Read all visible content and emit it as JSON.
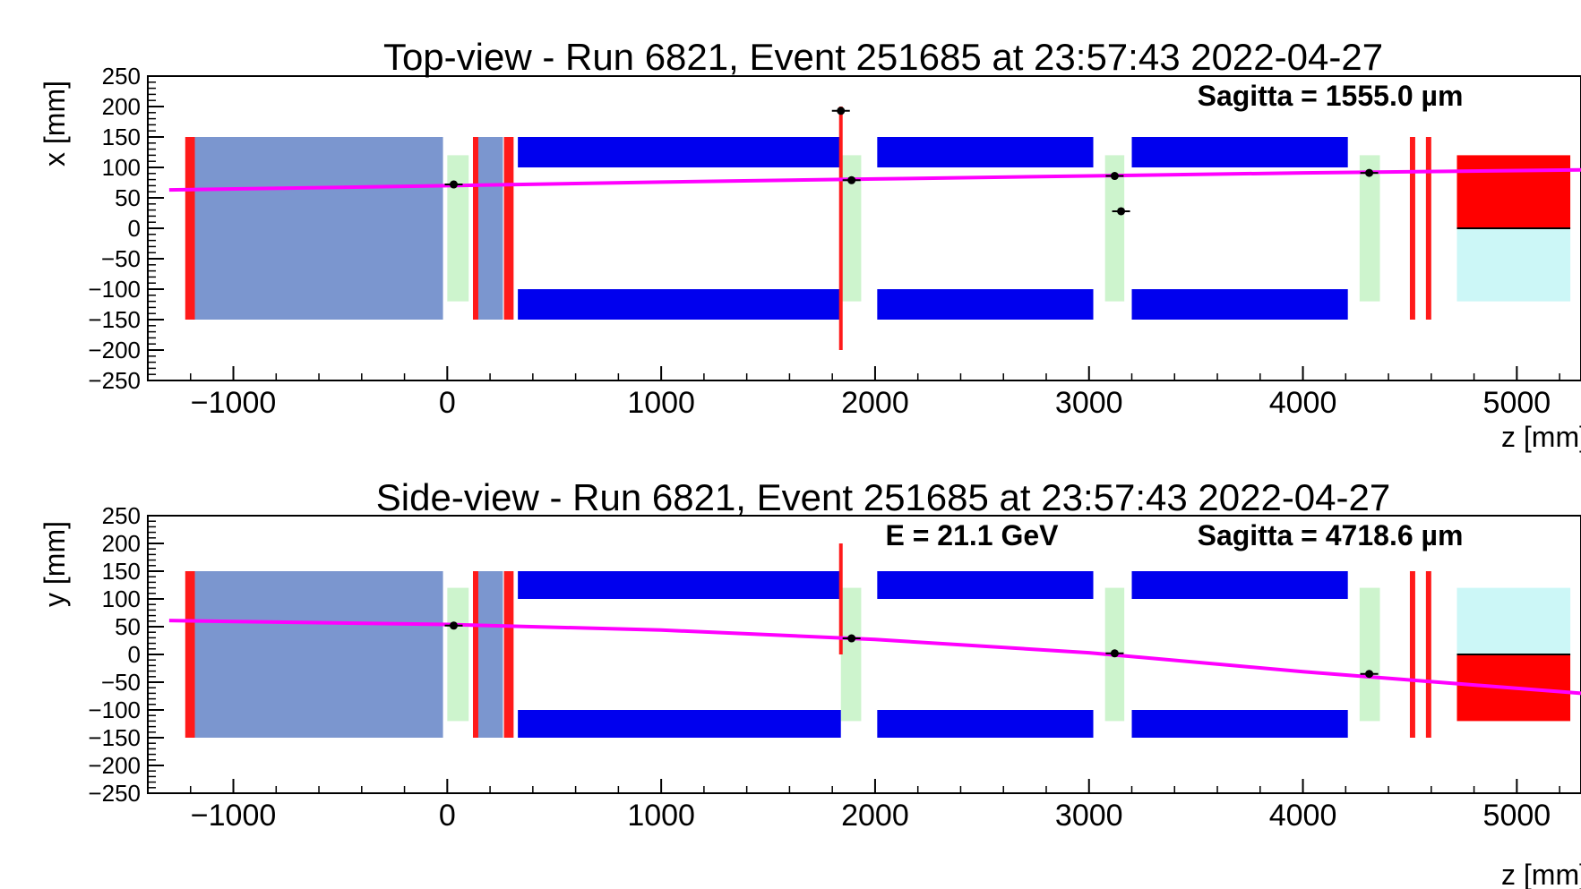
{
  "colors": {
    "track": "#ff00ff",
    "absorber": "#7b96cf",
    "magnet": "#0000ee",
    "scintillator": "#ff1a1a",
    "tracker": "#cdf4cd",
    "calorimeter_hit": "#ff0000",
    "calorimeter": "#ccf7f7",
    "frame": "#000000"
  },
  "chart_data": [
    {
      "type": "scatter",
      "title": "Top-view - Run 6821, Event 251685 at 23:57:43 2022-04-27",
      "xlabel": "z [mm]",
      "ylabel": "x [mm]",
      "xlim": [
        -1400,
        5300
      ],
      "ylim": [
        -250,
        250
      ],
      "x_ticks": [
        -1000,
        0,
        1000,
        2000,
        3000,
        4000,
        5000
      ],
      "y_ticks": [
        250,
        200,
        150,
        100,
        50,
        0,
        -50,
        -100,
        -150,
        -200,
        -250
      ],
      "annotations": [
        "Sagitta = 1555.0 µm"
      ],
      "track": {
        "z": [
          -1300,
          0,
          1000,
          2000,
          3000,
          4000,
          5300
        ],
        "value": [
          63,
          70,
          76,
          81,
          86,
          91,
          96
        ]
      },
      "hits": [
        {
          "z": 30,
          "value": 72
        },
        {
          "z": 1890,
          "value": 79
        },
        {
          "z": 3120,
          "value": 86
        },
        {
          "z": 4310,
          "value": 91
        },
        {
          "z": 1840,
          "value": 193
        },
        {
          "z": 3150,
          "value": 28
        }
      ],
      "scintillator_lines": [
        {
          "z": 1840,
          "from": -200,
          "to": 200
        }
      ],
      "calorimeter_hit_box": {
        "z0": 4720,
        "z1": 5250,
        "from": 0,
        "to": 120
      },
      "calorimeter_box": {
        "z0": 4720,
        "z1": 5250,
        "from": -120,
        "to": 0
      }
    },
    {
      "type": "scatter",
      "title": "Side-view - Run 6821, Event 251685 at 23:57:43 2022-04-27",
      "xlabel": "z [mm]",
      "ylabel": "y [mm]",
      "xlim": [
        -1400,
        5300
      ],
      "ylim": [
        -250,
        250
      ],
      "x_ticks": [
        -1000,
        0,
        1000,
        2000,
        3000,
        4000,
        5000
      ],
      "y_ticks": [
        250,
        200,
        150,
        100,
        50,
        0,
        -50,
        -100,
        -150,
        -200,
        -250
      ],
      "annotations": [
        "E = 21.1 GeV",
        "Sagitta = 4718.6 µm"
      ],
      "track": {
        "z": [
          -1300,
          0,
          1000,
          2000,
          3000,
          4000,
          5300
        ],
        "value": [
          61,
          54,
          44,
          27,
          3,
          -31,
          -70
        ]
      },
      "hits": [
        {
          "z": 30,
          "value": 52
        },
        {
          "z": 1890,
          "value": 29
        },
        {
          "z": 3120,
          "value": 2
        },
        {
          "z": 4310,
          "value": -35
        }
      ],
      "scintillator_lines": [
        {
          "z": 1840,
          "from": 0,
          "to": 200
        }
      ],
      "calorimeter_hit_box": {
        "z0": 4720,
        "z1": 5250,
        "from": -120,
        "to": 0
      },
      "calorimeter_box": {
        "z0": 4720,
        "z1": 5250,
        "from": 0,
        "to": 120
      }
    }
  ]
}
